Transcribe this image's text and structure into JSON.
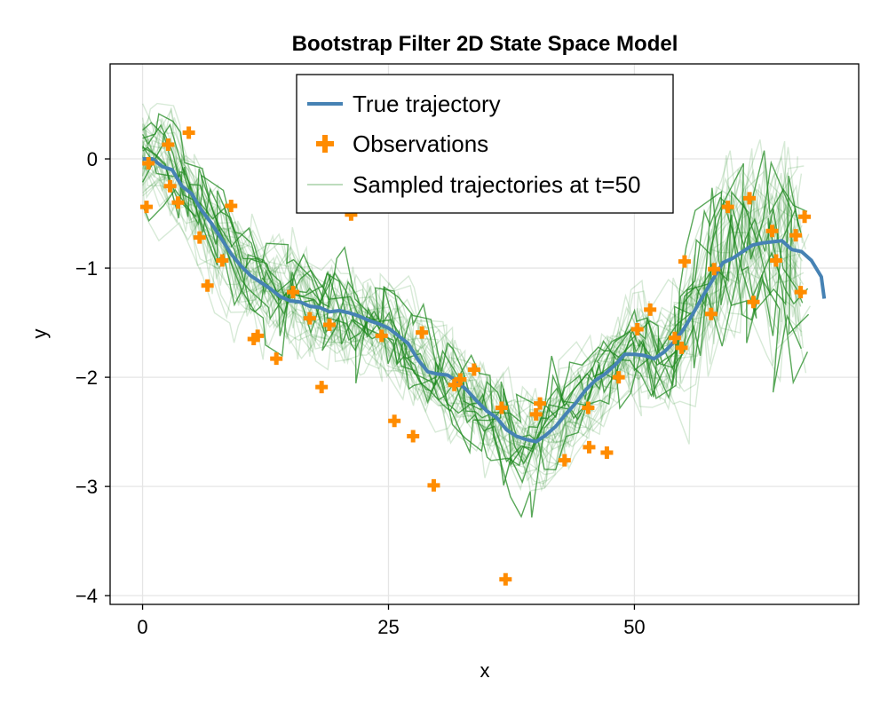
{
  "chart_data": {
    "type": "line",
    "title": "Bootstrap Filter 2D State Space Model",
    "xlabel": "x",
    "ylabel": "y",
    "xlim": [
      -3.3,
      72.8
    ],
    "ylim": [
      -4.08,
      0.87
    ],
    "xticks": [
      0,
      25,
      50
    ],
    "yticks": [
      0,
      -1,
      -2,
      -3,
      -4
    ],
    "xtick_labels": [
      "0",
      "25",
      "50"
    ],
    "ytick_labels": [
      "0",
      "−1",
      "−2",
      "−3",
      "−4"
    ],
    "grid": true,
    "legend_position": "top-center",
    "colors": {
      "true": "#4682b4",
      "obs": "#ff8c00",
      "samples": "#228b22",
      "grid": "#e5e5e5"
    },
    "series": [
      {
        "name": "True trajectory",
        "kind": "line",
        "points": [
          [
            0,
            0.0
          ],
          [
            1,
            0.0
          ],
          [
            2,
            -0.07
          ],
          [
            3,
            -0.1
          ],
          [
            4,
            -0.25
          ],
          [
            5,
            -0.32
          ],
          [
            6,
            -0.47
          ],
          [
            7,
            -0.59
          ],
          [
            8,
            -0.73
          ],
          [
            9,
            -0.87
          ],
          [
            10,
            -0.98
          ],
          [
            11,
            -1.07
          ],
          [
            12,
            -1.13
          ],
          [
            13,
            -1.19
          ],
          [
            14,
            -1.26
          ],
          [
            15,
            -1.3
          ],
          [
            16,
            -1.31
          ],
          [
            17,
            -1.35
          ],
          [
            18,
            -1.36
          ],
          [
            19,
            -1.4
          ],
          [
            20,
            -1.39
          ],
          [
            21,
            -1.41
          ],
          [
            22,
            -1.44
          ],
          [
            23,
            -1.48
          ],
          [
            24,
            -1.51
          ],
          [
            25,
            -1.55
          ],
          [
            26,
            -1.62
          ],
          [
            27,
            -1.69
          ],
          [
            28,
            -1.84
          ],
          [
            29,
            -1.95
          ],
          [
            30,
            -1.97
          ],
          [
            31,
            -1.98
          ],
          [
            32,
            -2.04
          ],
          [
            33,
            -2.12
          ],
          [
            34,
            -2.22
          ],
          [
            35,
            -2.31
          ],
          [
            36,
            -2.37
          ],
          [
            37,
            -2.48
          ],
          [
            38,
            -2.54
          ],
          [
            39,
            -2.57
          ],
          [
            40,
            -2.59
          ],
          [
            41,
            -2.53
          ],
          [
            42,
            -2.45
          ],
          [
            43,
            -2.34
          ],
          [
            44,
            -2.24
          ],
          [
            45,
            -2.12
          ],
          [
            46,
            -2.03
          ],
          [
            47,
            -1.97
          ],
          [
            48,
            -1.89
          ],
          [
            49,
            -1.79
          ],
          [
            50,
            -1.79
          ],
          [
            51,
            -1.8
          ],
          [
            52,
            -1.83
          ],
          [
            53,
            -1.77
          ],
          [
            54,
            -1.68
          ],
          [
            55,
            -1.56
          ],
          [
            56,
            -1.41
          ],
          [
            57,
            -1.25
          ],
          [
            58,
            -1.1
          ],
          [
            59,
            -0.95
          ],
          [
            60,
            -0.91
          ],
          [
            61,
            -0.85
          ],
          [
            62,
            -0.79
          ],
          [
            63,
            -0.77
          ],
          [
            64,
            -0.76
          ],
          [
            65,
            -0.75
          ],
          [
            66,
            -0.83
          ],
          [
            67,
            -0.85
          ],
          [
            68,
            -0.93
          ],
          [
            69,
            -1.08
          ],
          [
            69.3,
            -1.28
          ]
        ]
      },
      {
        "name": "Observations",
        "kind": "scatter",
        "points": [
          [
            0.4,
            -0.44
          ],
          [
            0.6,
            -0.04
          ],
          [
            2.6,
            0.13
          ],
          [
            2.8,
            -0.25
          ],
          [
            3.6,
            -0.4
          ],
          [
            4.7,
            0.24
          ],
          [
            5.8,
            -0.72
          ],
          [
            6.6,
            -1.16
          ],
          [
            8.1,
            -0.93
          ],
          [
            9.0,
            -0.43
          ],
          [
            11.3,
            -1.65
          ],
          [
            11.7,
            -1.62
          ],
          [
            13.6,
            -1.83
          ],
          [
            15.3,
            -1.22
          ],
          [
            17.0,
            -1.46
          ],
          [
            18.2,
            -2.09
          ],
          [
            19.0,
            -1.52
          ],
          [
            21.2,
            -0.51
          ],
          [
            24.3,
            -1.62
          ],
          [
            25.6,
            -2.4
          ],
          [
            27.5,
            -2.54
          ],
          [
            28.4,
            -1.59
          ],
          [
            29.6,
            -2.99
          ],
          [
            31.7,
            -2.07
          ],
          [
            32.3,
            -2.02
          ],
          [
            33.7,
            -1.93
          ],
          [
            36.5,
            -2.28
          ],
          [
            36.9,
            -3.85
          ],
          [
            40.0,
            -2.34
          ],
          [
            40.4,
            -2.24
          ],
          [
            42.9,
            -2.76
          ],
          [
            45.3,
            -2.28
          ],
          [
            45.4,
            -2.64
          ],
          [
            47.2,
            -2.69
          ],
          [
            48.4,
            -2.0
          ],
          [
            50.3,
            -1.56
          ],
          [
            51.6,
            -1.38
          ],
          [
            54.1,
            -1.64
          ],
          [
            54.8,
            -1.73
          ],
          [
            55.1,
            -0.94
          ],
          [
            57.8,
            -1.42
          ],
          [
            58.1,
            -1.01
          ],
          [
            59.5,
            -0.44
          ],
          [
            61.7,
            -0.36
          ],
          [
            62.1,
            -1.31
          ],
          [
            64.0,
            -0.66
          ],
          [
            64.4,
            -0.93
          ],
          [
            66.4,
            -0.7
          ],
          [
            66.9,
            -1.22
          ],
          [
            67.3,
            -0.53
          ]
        ]
      },
      {
        "name": "Sampled trajectories at t=50",
        "kind": "lines"
      }
    ]
  }
}
